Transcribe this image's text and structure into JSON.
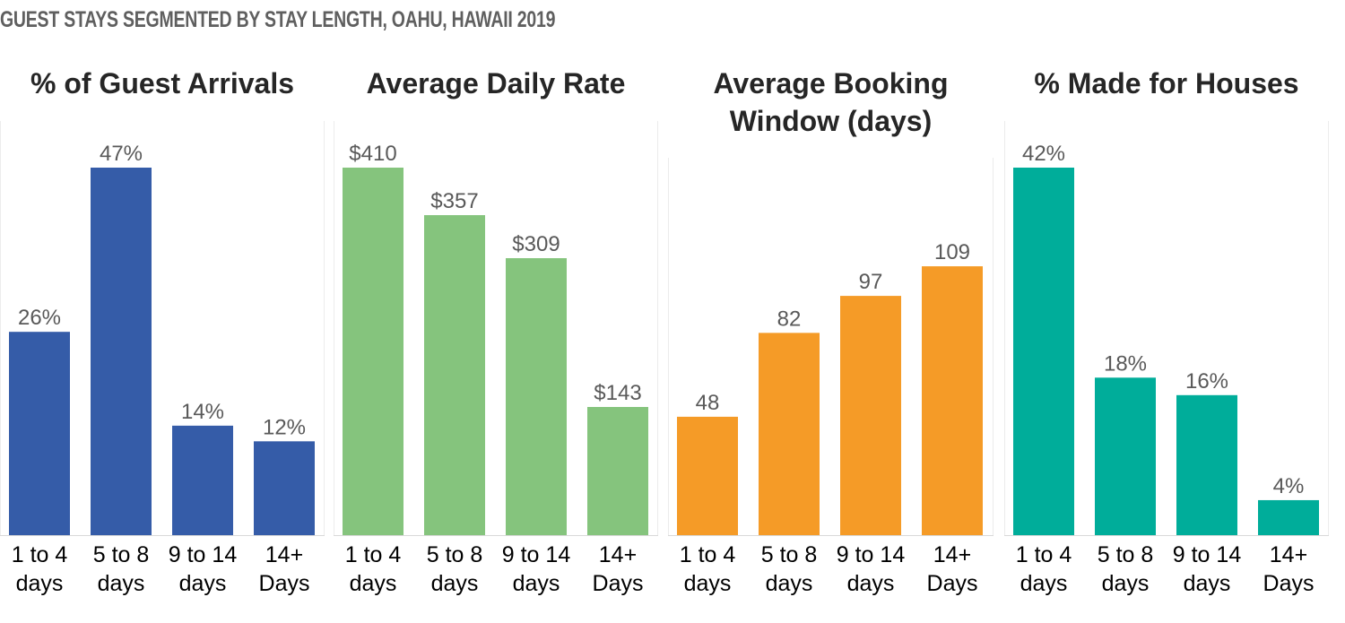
{
  "page_title": "GUEST STAYS SEGMENTED BY STAY LENGTH, OAHU, HAWAII 2019",
  "chart_data": [
    {
      "type": "bar",
      "title": [
        "% of Guest Arrivals"
      ],
      "categories": [
        [
          "1 to 4",
          "days"
        ],
        [
          "5 to 8",
          "days"
        ],
        [
          "9 to 14",
          "days"
        ],
        [
          "14+",
          "Days"
        ]
      ],
      "values": [
        26,
        47,
        14,
        12
      ],
      "value_labels": [
        "26%",
        "47%",
        "14%",
        "12%"
      ],
      "ylim": [
        0,
        47
      ],
      "color": "#355ca8"
    },
    {
      "type": "bar",
      "title": [
        "Average Daily Rate"
      ],
      "categories": [
        [
          "1 to 4",
          "days"
        ],
        [
          "5 to 8",
          "days"
        ],
        [
          "9 to 14",
          "days"
        ],
        [
          "14+",
          "Days"
        ]
      ],
      "values": [
        410,
        357,
        309,
        143
      ],
      "value_labels": [
        "$410",
        "$357",
        "$309",
        "$143"
      ],
      "ylim": [
        0,
        410
      ],
      "color": "#85c47d"
    },
    {
      "type": "bar",
      "title": [
        "Average Booking",
        "Window (days)"
      ],
      "categories": [
        [
          "1 to 4",
          "days"
        ],
        [
          "5 to 8",
          "days"
        ],
        [
          "9 to 14",
          "days"
        ],
        [
          "14+",
          "Days"
        ]
      ],
      "values": [
        48,
        82,
        97,
        109
      ],
      "value_labels": [
        "48",
        "82",
        "97",
        "109"
      ],
      "ylim": [
        0,
        149
      ],
      "color": "#f59b27"
    },
    {
      "type": "bar",
      "title": [
        "% Made for Houses"
      ],
      "categories": [
        [
          "1 to 4",
          "days"
        ],
        [
          "5 to 8",
          "days"
        ],
        [
          "9 to 14",
          "days"
        ],
        [
          "14+",
          "Days"
        ]
      ],
      "values": [
        42,
        18,
        16,
        4
      ],
      "value_labels": [
        "42%",
        "18%",
        "16%",
        "4%"
      ],
      "ylim": [
        0,
        42
      ],
      "color": "#00ad9a"
    }
  ]
}
